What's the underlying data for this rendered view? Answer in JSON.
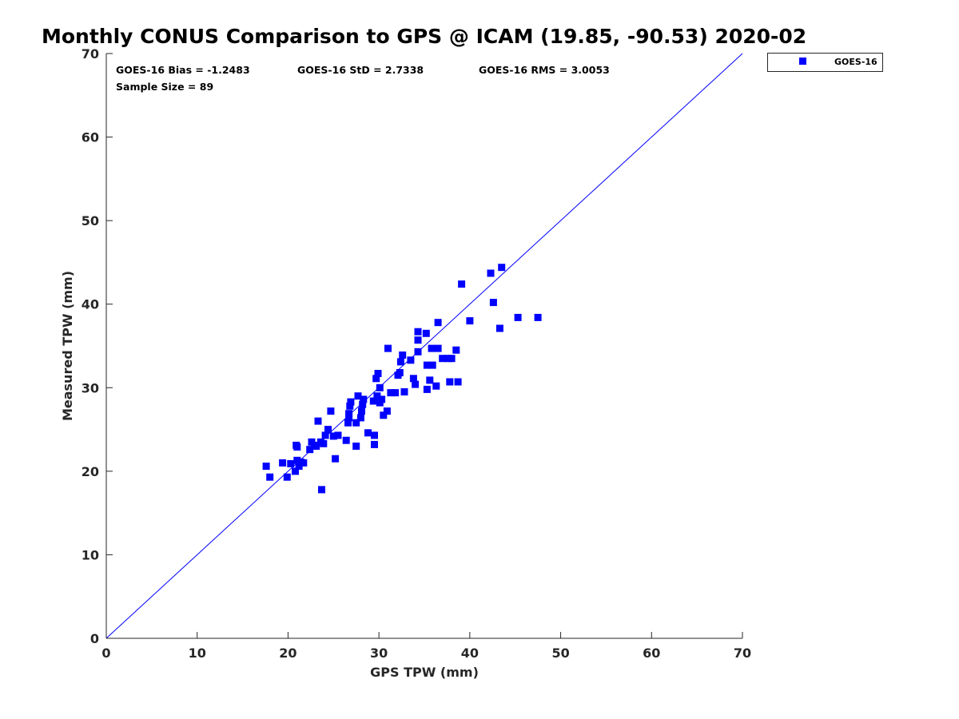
{
  "chart_data": {
    "type": "scatter",
    "title": "Monthly CONUS Comparison to GPS @ ICAM (19.85, -90.53) 2020-02",
    "xlabel": "GPS TPW (mm)",
    "ylabel": "Measured TPW (mm)",
    "xlim": [
      0,
      70
    ],
    "ylim": [
      0,
      70
    ],
    "xticks": [
      0,
      10,
      20,
      30,
      40,
      50,
      60,
      70
    ],
    "yticks": [
      0,
      10,
      20,
      30,
      40,
      50,
      60,
      70
    ],
    "grid": false,
    "legend_position": "top-right outside",
    "reference_line": {
      "name": "1:1 line",
      "x": [
        0,
        70
      ],
      "y": [
        0,
        70
      ],
      "color": "#0000ff"
    },
    "stats": {
      "bias": "GOES-16 Bias = -1.2483",
      "std": "GOES-16 StD = 2.7338",
      "rms": "GOES-16 RMS = 3.0053",
      "sample": "Sample Size = 89"
    },
    "series": [
      {
        "name": "GOES-16",
        "color": "#0000ff",
        "marker": "square",
        "points": [
          [
            17.6,
            20.6
          ],
          [
            18.0,
            19.3
          ],
          [
            19.4,
            21.0
          ],
          [
            19.9,
            19.3
          ],
          [
            20.3,
            20.9
          ],
          [
            20.8,
            20.0
          ],
          [
            20.9,
            23.1
          ],
          [
            21.0,
            22.9
          ],
          [
            21.0,
            21.3
          ],
          [
            21.2,
            20.6
          ],
          [
            21.4,
            21.1
          ],
          [
            21.7,
            21.0
          ],
          [
            22.4,
            22.6
          ],
          [
            22.6,
            23.5
          ],
          [
            23.1,
            23.0
          ],
          [
            23.3,
            26.0
          ],
          [
            23.6,
            23.5
          ],
          [
            23.7,
            17.8
          ],
          [
            23.9,
            23.3
          ],
          [
            24.1,
            24.3
          ],
          [
            24.4,
            25.0
          ],
          [
            24.7,
            27.2
          ],
          [
            25.0,
            24.2
          ],
          [
            25.2,
            21.5
          ],
          [
            25.5,
            24.3
          ],
          [
            26.4,
            23.7
          ],
          [
            26.6,
            25.8
          ],
          [
            26.7,
            26.4
          ],
          [
            26.7,
            26.9
          ],
          [
            26.8,
            27.8
          ],
          [
            26.9,
            28.3
          ],
          [
            27.5,
            25.8
          ],
          [
            27.5,
            23.0
          ],
          [
            27.7,
            29.0
          ],
          [
            28.0,
            26.4
          ],
          [
            28.1,
            27.2
          ],
          [
            28.2,
            28.0
          ],
          [
            28.3,
            28.6
          ],
          [
            28.8,
            24.6
          ],
          [
            29.4,
            28.4
          ],
          [
            29.5,
            24.3
          ],
          [
            29.5,
            23.2
          ],
          [
            29.7,
            31.1
          ],
          [
            29.8,
            29.0
          ],
          [
            29.9,
            31.7
          ],
          [
            30.0,
            28.5
          ],
          [
            30.1,
            30.0
          ],
          [
            30.3,
            28.6
          ],
          [
            30.5,
            26.7
          ],
          [
            30.9,
            27.2
          ],
          [
            31.0,
            34.7
          ],
          [
            31.3,
            29.4
          ],
          [
            31.8,
            29.4
          ],
          [
            32.1,
            31.5
          ],
          [
            32.3,
            31.8
          ],
          [
            32.4,
            33.1
          ],
          [
            32.6,
            33.9
          ],
          [
            32.8,
            29.5
          ],
          [
            33.5,
            33.3
          ],
          [
            33.8,
            31.1
          ],
          [
            34.0,
            30.4
          ],
          [
            34.3,
            36.7
          ],
          [
            34.3,
            35.7
          ],
          [
            34.3,
            34.3
          ],
          [
            35.2,
            36.5
          ],
          [
            35.3,
            32.7
          ],
          [
            35.3,
            29.8
          ],
          [
            35.6,
            30.9
          ],
          [
            35.8,
            34.7
          ],
          [
            35.9,
            32.7
          ],
          [
            36.3,
            30.2
          ],
          [
            36.5,
            37.8
          ],
          [
            36.5,
            34.7
          ],
          [
            37.0,
            33.5
          ],
          [
            37.6,
            33.5
          ],
          [
            37.8,
            30.7
          ],
          [
            38.0,
            33.5
          ],
          [
            38.5,
            34.5
          ],
          [
            38.7,
            30.7
          ],
          [
            39.1,
            42.4
          ],
          [
            40.0,
            38.0
          ],
          [
            42.3,
            43.7
          ],
          [
            42.6,
            40.2
          ],
          [
            43.3,
            37.1
          ],
          [
            43.5,
            44.4
          ],
          [
            45.3,
            38.4
          ],
          [
            47.5,
            38.4
          ],
          [
            30.1,
            28.2
          ],
          [
            22.9,
            23.1
          ]
        ]
      }
    ]
  }
}
